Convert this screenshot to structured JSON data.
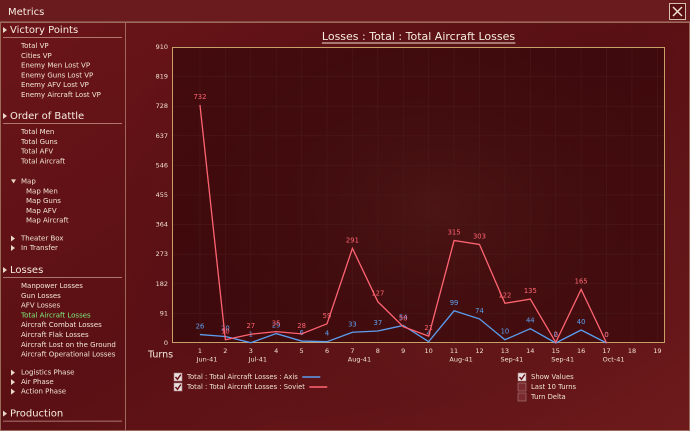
{
  "window": {
    "title": "Metrics"
  },
  "sidebar": [
    {
      "title": "Victory Points",
      "items": [
        "Total VP",
        "Cities VP",
        "Enemy Men Lost VP",
        "Enemy Guns Lost VP",
        "Enemy AFV Lost VP",
        "Enemy Aircraft Lost VP"
      ],
      "subgroups": []
    },
    {
      "title": "Order of Battle",
      "items": [
        "Total Men",
        "Total Guns",
        "Total AFV",
        "Total Aircraft"
      ],
      "subgroups": [
        {
          "title": "Map",
          "expanded": true,
          "items": [
            "Map Men",
            "Map Guns",
            "Map AFV",
            "Map Aircraft"
          ]
        },
        {
          "title": "Theater Box",
          "expanded": false,
          "items": []
        },
        {
          "title": "In Transfer",
          "expanded": false,
          "items": []
        }
      ]
    },
    {
      "title": "Losses",
      "selected": 3,
      "items": [
        "Manpower Losses",
        "Gun Losses",
        "AFV Losses",
        "Total Aircraft Losses",
        "Aircraft Combat Losses",
        "Aircraft Flak Losses",
        "Aircraft Lost on the Ground",
        "Aircraft Operational Losses"
      ],
      "subgroups": [
        {
          "title": "Logistics Phase",
          "expanded": false,
          "items": []
        },
        {
          "title": "Air Phase",
          "expanded": false,
          "items": []
        },
        {
          "title": "Action Phase",
          "expanded": false,
          "items": []
        }
      ]
    },
    {
      "title": "Production",
      "items": [],
      "subgroups": []
    }
  ],
  "chart_data": {
    "type": "line",
    "title": "Losses : Total : Total Aircraft Losses",
    "x_label": "Turns",
    "x": [
      1,
      2,
      3,
      4,
      5,
      6,
      7,
      8,
      9,
      10,
      11,
      12,
      13,
      14,
      15,
      16,
      17
    ],
    "xlim": [
      -0.1,
      19.3
    ],
    "xticks": [
      1,
      2,
      3,
      4,
      5,
      6,
      7,
      8,
      9,
      10,
      11,
      12,
      13,
      14,
      15,
      16,
      17,
      18,
      19
    ],
    "month_labels": [
      {
        "turn": 1,
        "label": "Jun-41"
      },
      {
        "turn": 3,
        "label": "Jul-41"
      },
      {
        "turn": 7,
        "label": "Aug-41"
      },
      {
        "turn": 11,
        "label": "Aug-41"
      },
      {
        "turn": 13,
        "label": "Sep-41"
      },
      {
        "turn": 15,
        "label": "Sep-41"
      },
      {
        "turn": 17,
        "label": "Oct-41"
      }
    ],
    "ylim": [
      0,
      910
    ],
    "yticks": [
      0,
      91,
      182,
      273,
      364,
      455,
      546,
      637,
      728,
      819,
      910
    ],
    "grid": true,
    "show_values": true,
    "series": [
      {
        "name": "Total : Total Aircraft Losses : Axis",
        "color": "#5b9ff0",
        "checked": true,
        "values": [
          26,
          20,
          1,
          29,
          6,
          4,
          33,
          37,
          54,
          4,
          99,
          74,
          10,
          44,
          0,
          40,
          0
        ]
      },
      {
        "name": "Total : Total Aircraft Losses : Soviet",
        "color": "#ff6472",
        "checked": true,
        "values": [
          732,
          10,
          27,
          35,
          28,
          59,
          291,
          127,
          50,
          21,
          315,
          303,
          122,
          135,
          2,
          165,
          0
        ]
      }
    ],
    "options": [
      {
        "label": "Show Values",
        "checked": true
      },
      {
        "label": "Last 10 Turns",
        "checked": false
      },
      {
        "label": "Turn Delta",
        "checked": false
      }
    ]
  }
}
